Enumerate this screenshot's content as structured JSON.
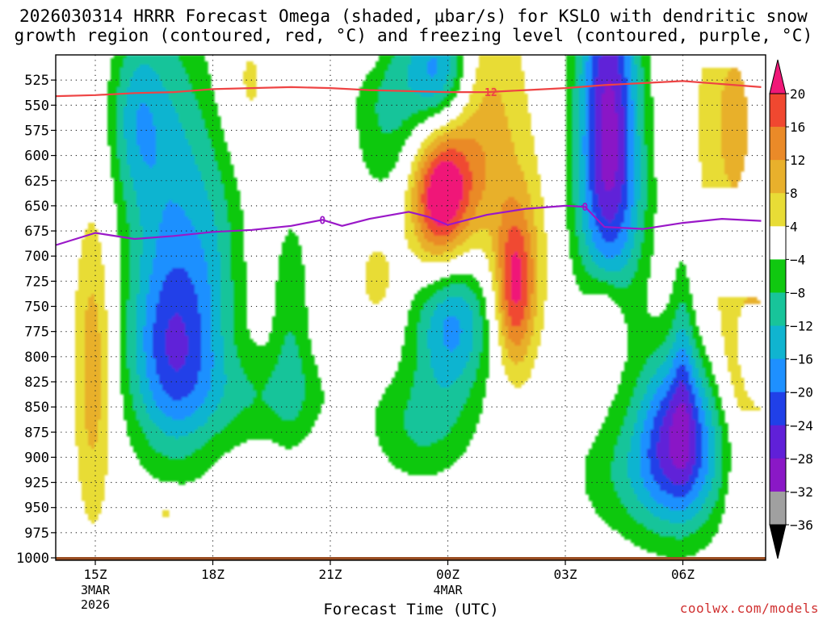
{
  "title_line1": "2026030314 HRRR Forecast Omega (shaded, μbar/s) for KSLO with dendritic snow",
  "title_line2": "growth region (contoured, red, °C) and freezing level (contoured, purple, °C)",
  "credit": "coolwx.com/models",
  "chart_data": {
    "type": "heatmap",
    "title": "2026030314 HRRR Forecast Omega (shaded, μbar/s) for KSLO with dendritic snow growth region (contoured, red, °C) and freezing level (contoured, purple, °C)",
    "xlabel": "Forecast Time (UTC)",
    "ylabel": "",
    "x_range_hours": [
      -1.0,
      17.0
    ],
    "y_range_hpa": [
      1000,
      500
    ],
    "y_ticks": [
      525,
      550,
      575,
      600,
      625,
      650,
      675,
      700,
      725,
      750,
      775,
      800,
      825,
      850,
      875,
      900,
      925,
      950,
      975,
      1000
    ],
    "x_ticks": [
      {
        "hour": 0,
        "label": "15Z",
        "sub1": "3MAR",
        "sub2": "2026"
      },
      {
        "hour": 3,
        "label": "18Z",
        "sub1": "",
        "sub2": ""
      },
      {
        "hour": 6,
        "label": "21Z",
        "sub1": "",
        "sub2": ""
      },
      {
        "hour": 9,
        "label": "00Z",
        "sub1": "4MAR",
        "sub2": ""
      },
      {
        "hour": 12,
        "label": "03Z",
        "sub1": "",
        "sub2": ""
      },
      {
        "hour": 15,
        "label": "06Z",
        "sub1": "",
        "sub2": ""
      }
    ],
    "grid": true,
    "colorbar": {
      "position": "right",
      "levels": [
        -36,
        -32,
        -28,
        -24,
        -20,
        -16,
        -12,
        -8,
        -4,
        4,
        8,
        12,
        16,
        20
      ],
      "labels": [
        "20",
        "16",
        "12",
        "8",
        "4",
        "−4",
        "−8",
        "−12",
        "−16",
        "−20",
        "−24",
        "−28",
        "−32",
        "−36"
      ],
      "colors": [
        "#a0a0a0",
        "#8a18c6",
        "#6020d8",
        "#2040e8",
        "#1e90ff",
        "#10b4d0",
        "#18c49a",
        "#10c810",
        "#ffffff",
        "#e8dc36",
        "#e8b02c",
        "#ea8a28",
        "#f04830",
        "#f01878"
      ],
      "under_color": "#000000",
      "over_color": "#f01878"
    },
    "omega_features": [
      {
        "name": "ascent plume left",
        "hour_range": [
          0.5,
          4.0
        ],
        "hpa_range": [
          520,
          910
        ],
        "min_value": -20
      },
      {
        "name": "ascent core 1",
        "hour_range": [
          1.2,
          3.0
        ],
        "hpa_range": [
          740,
          860
        ],
        "min_value": -20
      },
      {
        "name": "upper ascent 00Z",
        "hour_range": [
          6.5,
          9.0
        ],
        "hpa_range": [
          500,
          640
        ],
        "min_value": -24
      },
      {
        "name": "subsidence max 00Z",
        "hour_range": [
          8.2,
          10.0
        ],
        "hpa_range": [
          580,
          710
        ],
        "min_value": 20
      },
      {
        "name": "ascent core 2",
        "hour_range": [
          8.0,
          10.5
        ],
        "hpa_range": [
          720,
          830
        ],
        "min_value": -20
      },
      {
        "name": "subsidence 02Z",
        "hour_range": [
          10.0,
          11.2
        ],
        "hpa_range": [
          680,
          800
        ],
        "min_value": 16
      },
      {
        "name": "upper ascent 04Z",
        "hour_range": [
          12.0,
          14.5
        ],
        "hpa_range": [
          500,
          690
        ],
        "min_value": -32
      },
      {
        "name": "lower ascent 05Z",
        "hour_range": [
          12.5,
          16.0
        ],
        "hpa_range": [
          800,
          960
        ],
        "min_value": -24
      }
    ],
    "series": [
      {
        "name": "",
        "color": "#ee4444",
        "label": "12",
        "x_hours": [
          -1,
          0,
          1,
          2,
          3,
          4,
          5,
          6,
          7,
          8,
          9,
          10,
          11,
          12,
          13,
          14,
          15,
          16,
          17
        ],
        "y_hpa": [
          541,
          540,
          538,
          537,
          534,
          533,
          532,
          533,
          535,
          536,
          537,
          537,
          535,
          533,
          530,
          528,
          526,
          529,
          532
        ]
      },
      {
        "name": "",
        "color": "#9a18c8",
        "label": "0",
        "x_hours": [
          -1,
          0,
          1,
          2,
          3,
          4,
          5,
          5.8,
          6.3,
          7,
          8,
          8.5,
          9,
          10,
          11,
          12,
          12.5,
          13,
          14,
          15,
          16,
          17
        ],
        "y_hpa": [
          689,
          677,
          683,
          680,
          676,
          674,
          670,
          664,
          670,
          663,
          656,
          661,
          669,
          659,
          653,
          650,
          651,
          671,
          673,
          667,
          663,
          665
        ]
      }
    ],
    "ground": {
      "color": "#9a4e22",
      "hpa": 1000
    }
  }
}
